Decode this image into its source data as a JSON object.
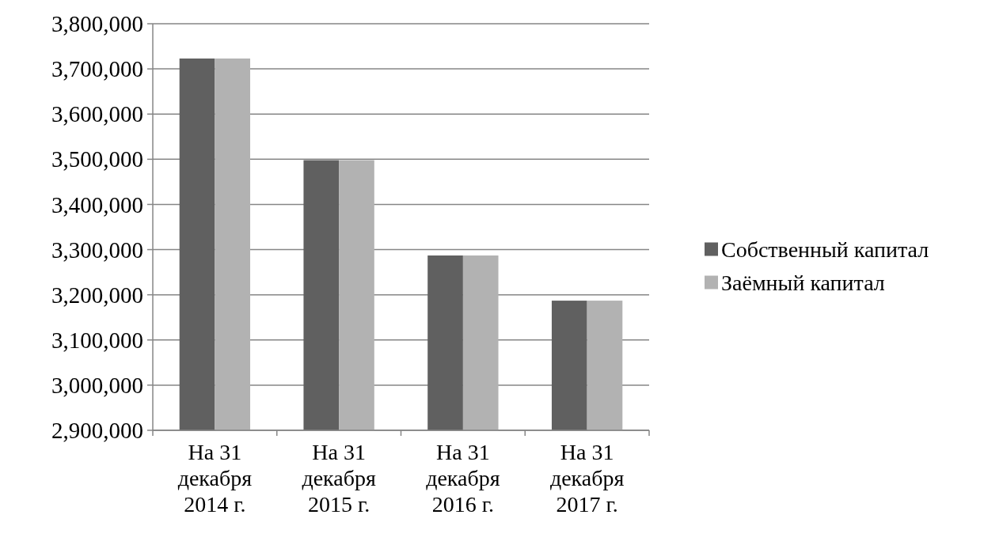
{
  "chart_data": {
    "type": "bar",
    "categories": [
      "На 31 декабря 2014 г.",
      "На 31 декабря 2015 г.",
      "На 31 декабря 2016 г.",
      "На 31 декабря 2017 г."
    ],
    "series": [
      {
        "name": "Собственный капитал",
        "color": "#606060",
        "values": [
          3723000,
          3498000,
          3287000,
          3187000
        ]
      },
      {
        "name": "Заёмный капитал",
        "color": "#b2b2b2",
        "values": [
          3723000,
          3498000,
          3287000,
          3187000
        ]
      }
    ],
    "ylim": [
      2900000,
      3800000
    ],
    "yticks": [
      {
        "value": 2900000,
        "label": "2,900,000"
      },
      {
        "value": 3000000,
        "label": "3,000,000"
      },
      {
        "value": 3100000,
        "label": "3,100,000"
      },
      {
        "value": 3200000,
        "label": "3,200,000"
      },
      {
        "value": 3300000,
        "label": "3,300,000"
      },
      {
        "value": 3400000,
        "label": "3,400,000"
      },
      {
        "value": 3500000,
        "label": "3,500,000"
      },
      {
        "value": 3600000,
        "label": "3,600,000"
      },
      {
        "value": 3700000,
        "label": "3,700,000"
      },
      {
        "value": 3800000,
        "label": "3,800,000"
      }
    ],
    "grid": "y",
    "legend": "right"
  }
}
